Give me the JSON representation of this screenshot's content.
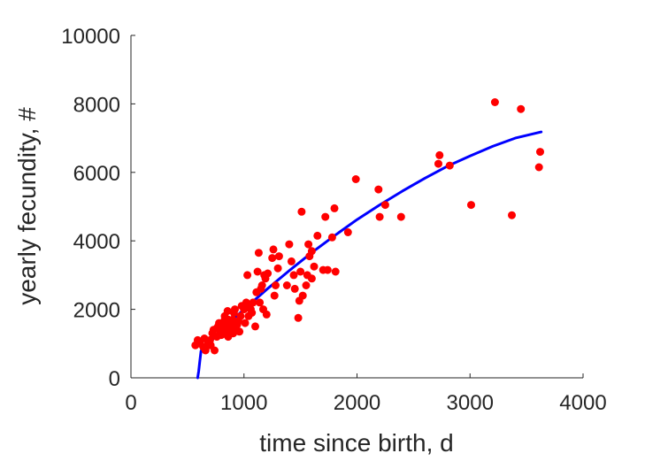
{
  "chart_data": {
    "type": "scatter",
    "title": "",
    "xlabel": "time since birth, d",
    "ylabel": "yearly fecundity, #",
    "xlim": [
      0,
      4000
    ],
    "ylim": [
      0,
      10000
    ],
    "xticks": [
      0,
      1000,
      2000,
      3000,
      4000
    ],
    "yticks": [
      0,
      2000,
      4000,
      6000,
      8000,
      10000
    ],
    "grid": false,
    "legend": "none",
    "colors": {
      "points": "#ff0000",
      "fit": "#0000ff",
      "axes": "#262626"
    },
    "series": [
      {
        "type": "scatter",
        "x": [
          570,
          590,
          610,
          640,
          650,
          660,
          680,
          690,
          700,
          705,
          720,
          730,
          740,
          760,
          770,
          780,
          790,
          800,
          810,
          820,
          830,
          840,
          850,
          855,
          860,
          870,
          880,
          890,
          900,
          905,
          910,
          920,
          930,
          940,
          950,
          960,
          970,
          980,
          1000,
          1010,
          1020,
          1030,
          1040,
          1050,
          1060,
          1070,
          1080,
          1100,
          1110,
          1120,
          1130,
          1140,
          1150,
          1160,
          1170,
          1180,
          1190,
          1200,
          1210,
          1250,
          1260,
          1270,
          1280,
          1300,
          1310,
          1380,
          1400,
          1420,
          1440,
          1450,
          1480,
          1500,
          1510,
          1520,
          1550,
          1570,
          1580,
          1600,
          1620,
          1650,
          1700,
          1720,
          1740,
          1780,
          1800,
          1810,
          1920,
          1990,
          2190,
          2200,
          2250,
          2390,
          2720,
          2730,
          2820,
          3010,
          3220,
          3370,
          3450,
          3610,
          3620,
          1560,
          1600,
          1490,
          830,
          860,
          890,
          760,
          790
        ],
        "y": [
          950,
          1100,
          1000,
          900,
          1150,
          800,
          1000,
          1050,
          1100,
          950,
          1300,
          1400,
          800,
          1200,
          1500,
          1600,
          1400,
          1250,
          1350,
          1550,
          1700,
          1300,
          1500,
          1950,
          1200,
          1650,
          1400,
          1500,
          1700,
          1300,
          1900,
          2000,
          1450,
          1550,
          1650,
          1350,
          1800,
          2100,
          2000,
          1600,
          2200,
          3000,
          1800,
          2100,
          2000,
          1900,
          2200,
          1500,
          2500,
          3100,
          3650,
          2200,
          2600,
          2700,
          2000,
          3000,
          2900,
          1850,
          3050,
          3500,
          3750,
          2400,
          2700,
          3200,
          3550,
          2700,
          3900,
          3400,
          3000,
          2600,
          1750,
          3100,
          4850,
          2400,
          2700,
          3900,
          3550,
          3700,
          3250,
          4150,
          3150,
          4700,
          3150,
          4100,
          4950,
          3100,
          4250,
          5800,
          5500,
          4700,
          5050,
          4700,
          6250,
          6500,
          6200,
          5050,
          8050,
          4750,
          7850,
          6150,
          6600,
          3000,
          2900,
          2250,
          1800,
          1700,
          1500,
          1450,
          1300
        ]
      },
      {
        "type": "line",
        "x": [
          590,
          600,
          610,
          620,
          640,
          670,
          700,
          800,
          900,
          1000,
          1200,
          1400,
          1600,
          1800,
          2000,
          2200,
          2400,
          2600,
          2800,
          3000,
          3200,
          3400,
          3630
        ],
        "y": [
          0,
          200,
          500,
          780,
          900,
          970,
          1050,
          1380,
          1700,
          2000,
          2580,
          3130,
          3660,
          4150,
          4620,
          5050,
          5450,
          5830,
          6180,
          6480,
          6760,
          7000,
          7180
        ]
      }
    ]
  }
}
